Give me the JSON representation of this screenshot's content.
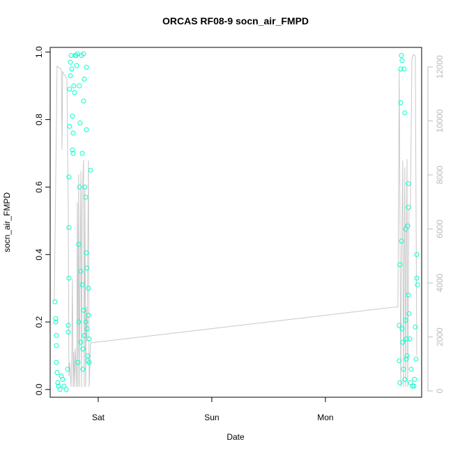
{
  "chart_data": {
    "type": "scatter",
    "title": "ORCAS RF08-9 socn_air_FMPD",
    "x_label": "Date",
    "y_label": "socn_air_FMPD",
    "xlim": [
      -0.423,
      2.847
    ],
    "xticks": [
      {
        "value": 0,
        "label": "Sat"
      },
      {
        "value": 1,
        "label": "Sun"
      },
      {
        "value": 2,
        "label": "Mon"
      }
    ],
    "ylim": [
      -0.023,
      1.014
    ],
    "yticks": [
      {
        "value": 0,
        "label": "0.0"
      },
      0.2,
      0.4,
      0.6,
      0.8,
      {
        "value": 1,
        "label": "1.0"
      }
    ],
    "y2lim": [
      -232,
      12723
    ],
    "y2ticks": [
      0,
      2000,
      4000,
      6000,
      8000,
      10000,
      12000
    ],
    "y2_color": "#bbbbbb",
    "series": [
      {
        "type": "line",
        "axis": "y2",
        "color": "#c8c8c8",
        "x": [
          -0.387,
          -0.362,
          -0.325,
          -0.319,
          -0.313,
          -0.276,
          -0.264,
          -0.258,
          -0.252,
          -0.239,
          -0.233,
          -0.227,
          -0.221,
          -0.215,
          -0.209,
          -0.202,
          -0.19,
          -0.184,
          -0.178,
          -0.172,
          -0.166,
          -0.153,
          -0.147,
          -0.141,
          -0.129,
          -0.123,
          -0.117,
          -0.11,
          -0.104,
          -0.098,
          -0.086,
          -0.08,
          -0.067,
          2.638,
          2.65,
          2.663,
          2.669,
          2.681,
          2.687,
          2.699,
          2.706,
          2.718,
          2.724,
          2.736,
          2.748,
          2.761,
          2.773,
          2.791,
          2.804
        ],
        "values": [
          3330,
          12030,
          11900,
          8930,
          11820,
          11560,
          6860,
          540,
          1060,
          150,
          1450,
          4150,
          150,
          1450,
          150,
          1570,
          150,
          6990,
          150,
          8030,
          150,
          8150,
          150,
          7250,
          8540,
          150,
          7510,
          150,
          3120,
          1830,
          8540,
          150,
          1780,
          3120,
          11900,
          150,
          4150,
          8540,
          150,
          8280,
          150,
          8590,
          150,
          6740,
          6740,
          12280,
          12460,
          12410,
          1320
        ]
      },
      {
        "type": "scatter",
        "color": "#00ffcc",
        "x": [
          -0.38,
          -0.374,
          -0.374,
          -0.368,
          -0.368,
          -0.368,
          -0.362,
          -0.356,
          -0.35,
          -0.337,
          -0.325,
          -0.313,
          -0.301,
          -0.282,
          -0.27,
          -0.264,
          -0.264,
          -0.258,
          -0.258,
          -0.258,
          -0.252,
          -0.252,
          -0.245,
          -0.245,
          -0.239,
          -0.233,
          -0.227,
          -0.227,
          -0.221,
          -0.221,
          -0.215,
          -0.209,
          -0.202,
          -0.196,
          -0.19,
          -0.184,
          -0.178,
          -0.172,
          -0.172,
          -0.166,
          -0.166,
          -0.16,
          -0.153,
          -0.153,
          -0.147,
          -0.141,
          -0.141,
          -0.135,
          -0.135,
          -0.129,
          -0.129,
          -0.129,
          -0.123,
          -0.123,
          -0.117,
          -0.11,
          -0.11,
          -0.104,
          -0.104,
          -0.104,
          -0.098,
          -0.098,
          -0.092,
          -0.092,
          -0.086,
          -0.086,
          -0.08,
          -0.08,
          -0.067,
          2.65,
          2.65,
          2.656,
          2.656,
          2.663,
          2.663,
          2.669,
          2.669,
          2.675,
          2.675,
          2.681,
          2.687,
          2.693,
          2.699,
          2.699,
          2.706,
          2.706,
          2.712,
          2.712,
          2.718,
          2.724,
          2.73,
          2.73,
          2.73,
          2.736,
          2.742,
          2.748,
          2.755,
          2.767,
          2.779,
          2.785,
          2.791,
          2.798,
          2.804,
          2.804,
          2.81
        ],
        "values": [
          0.26,
          0.21,
          0.2,
          0.16,
          0.13,
          0.08,
          0.05,
          0.02,
          0.01,
          0.0,
          0.04,
          0.03,
          0.01,
          0.0,
          0.06,
          0.17,
          0.19,
          0.33,
          0.48,
          0.63,
          0.78,
          0.89,
          0.93,
          0.97,
          0.99,
          0.95,
          0.81,
          0.71,
          0.76,
          0.7,
          0.9,
          0.88,
          0.99,
          0.99,
          0.96,
          0.995,
          0.08,
          0.2,
          0.43,
          0.6,
          0.9,
          0.79,
          0.14,
          0.35,
          0.99,
          0.7,
          0.31,
          0.12,
          0.06,
          0.995,
          0.855,
          0.235,
          0.92,
          0.16,
          0.6,
          0.57,
          0.2,
          0.955,
          0.77,
          0.405,
          0.36,
          0.18,
          0.1,
          0.085,
          0.3,
          0.22,
          0.15,
          0.08,
          0.65,
          0.19,
          0.085,
          0.37,
          0.02,
          0.85,
          0.95,
          0.99,
          0.44,
          0.975,
          0.18,
          0.14,
          0.06,
          0.95,
          0.82,
          0.03,
          0.475,
          0.205,
          0.15,
          0.09,
          0.1,
          0.485,
          0.61,
          0.54,
          0.28,
          0.225,
          0.15,
          0.02,
          0.06,
          0.01,
          0.01,
          0.03,
          0.185,
          0.09,
          0.4,
          0.33,
          0.31
        ]
      }
    ]
  }
}
